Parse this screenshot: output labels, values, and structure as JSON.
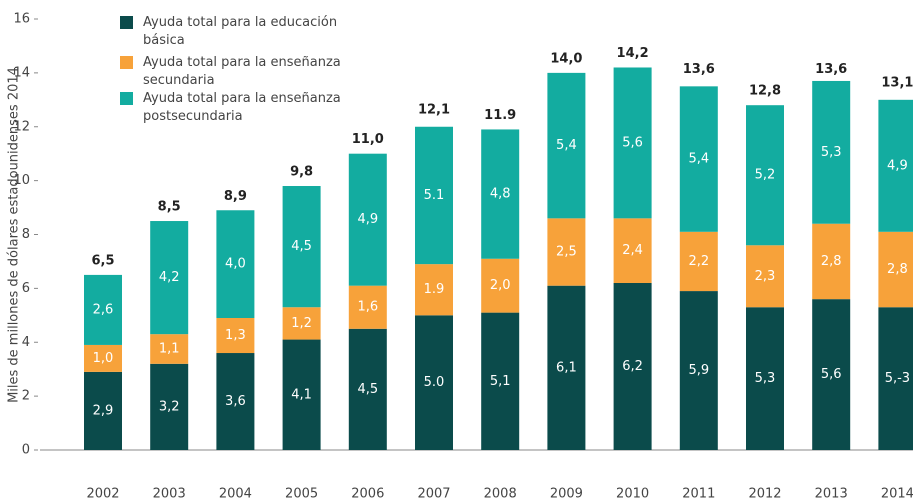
{
  "chart_data": {
    "type": "stacked_bar",
    "y_axis_label": "Miles de millones de dólares estadounidenses 2014",
    "categories": [
      "2002",
      "2003",
      "2004",
      "2005",
      "2006",
      "2007",
      "2008",
      "2009",
      "2010",
      "2011",
      "2012",
      "2013",
      "2014"
    ],
    "series": [
      {
        "name": "Ayuda total para la educación básica",
        "color": "#0b4b4b",
        "values": [
          2.9,
          3.2,
          3.6,
          4.1,
          4.5,
          5.0,
          5.1,
          6.1,
          6.2,
          5.9,
          5.3,
          5.6,
          5.3
        ],
        "value_labels": [
          "2,9",
          "3,2",
          "3,6",
          "4,1",
          "4,5",
          "5.0",
          "5,1",
          "6,1",
          "6,2",
          "5,9",
          "5,3",
          "5,6",
          "5,-3"
        ]
      },
      {
        "name": "Ayuda total para la enseñanza secundaria",
        "color": "#f7a23a",
        "values": [
          1.0,
          1.1,
          1.3,
          1.2,
          1.6,
          1.9,
          2.0,
          2.5,
          2.4,
          2.2,
          2.3,
          2.8,
          2.8
        ],
        "value_labels": [
          "1,0",
          "1,1",
          "1,3",
          "1,2",
          "1,6",
          "1.9",
          "2,0",
          "2,5",
          "2,4",
          "2,2",
          "2,3",
          "2,8",
          "2,8"
        ]
      },
      {
        "name": "Ayuda total para la enseñanza postsecundaria",
        "color": "#13aca0",
        "values": [
          2.6,
          4.2,
          4.0,
          4.5,
          4.9,
          5.1,
          4.8,
          5.4,
          5.6,
          5.4,
          5.2,
          5.3,
          4.9
        ],
        "value_labels": [
          "2,6",
          "4,2",
          "4,0",
          "4,5",
          "4,9",
          "5.1",
          "4,8",
          "5,4",
          "5,6",
          "5,4",
          "5,2",
          "5,3",
          "4,9"
        ]
      }
    ],
    "totals": [
      6.5,
      8.5,
      8.9,
      9.8,
      11.0,
      12.1,
      11.9,
      14.0,
      14.2,
      13.6,
      12.8,
      13.6,
      13.1
    ],
    "total_labels": [
      "6,5",
      "8,5",
      "8,9",
      "9,8",
      "11,0",
      "12,1",
      "11.9",
      "14,0",
      "14,2",
      "13,6",
      "12,8",
      "13,6",
      "13,1"
    ],
    "ylim": [
      0,
      16
    ],
    "yticks": [
      0,
      2,
      4,
      6,
      8,
      10,
      12,
      14,
      16
    ],
    "grid": false
  }
}
